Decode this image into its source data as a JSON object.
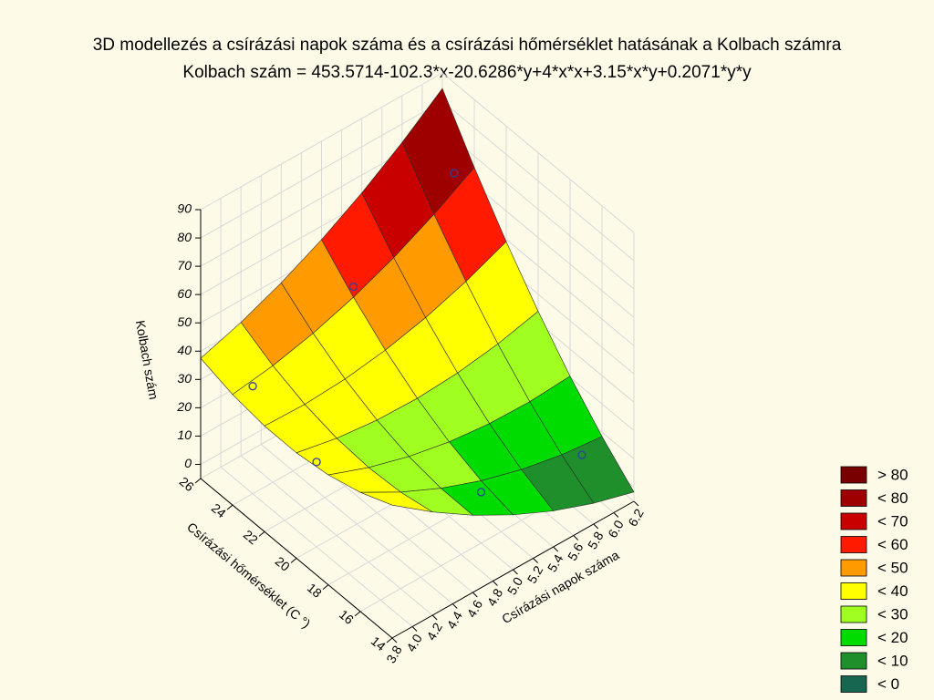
{
  "chart_data": {
    "type": "surface3d",
    "title": "3D modellezés a  csírázási napok száma és a csírázási hőmérséklet hatásának a Kolbach számra",
    "subtitle": "Kolbach szám = 453.5714-102.3*x-20.6286*y+4*x*x+3.15*x*y+0.2071*y*y",
    "xlabel": "Csírázási napok száma",
    "ylabel": "Csírázási hőmérséklet (C °)",
    "zlabel": "Kolbach szám",
    "xlim": [
      3.8,
      6.2
    ],
    "xticks": [
      3.8,
      {
        "value": 4,
        "label": "4.0"
      },
      4.2,
      4.4,
      4.6,
      4.8,
      {
        "value": 5,
        "label": "5.0"
      },
      5.2,
      5.4,
      5.6,
      5.8,
      {
        "value": 6,
        "label": "6.0"
      },
      6.2
    ],
    "ylim": [
      14,
      26
    ],
    "yticks": [
      14,
      16,
      18,
      20,
      22,
      24,
      26
    ],
    "zlim": [
      -5,
      90
    ],
    "zticks": [
      0,
      10,
      20,
      30,
      40,
      50,
      60,
      70,
      80,
      90
    ],
    "grid": true,
    "surface": {
      "x": [
        3.8,
        4.2,
        4.6,
        5.0,
        5.4,
        5.8,
        6.2
      ],
      "y": [
        14,
        16,
        18,
        20,
        22,
        24,
        26
      ],
      "z": [
        [
          41.96,
          37.07,
          33.84,
          32.26,
          32.34,
          34.08,
          37.47
        ],
        [
          31.48,
          29.11,
          28.4,
          29.34,
          31.94,
          36.2,
          42.11
        ],
        [
          22.28,
          22.43,
          24.24,
          27.7,
          32.82,
          39.6,
          48.03
        ],
        [
          14.36,
          17.03,
          21.36,
          27.34,
          34.98,
          44.28,
          55.23
        ],
        [
          7.72,
          12.91,
          19.76,
          28.26,
          38.42,
          50.24,
          63.71
        ],
        [
          2.36,
          10.07,
          19.44,
          30.46,
          43.14,
          57.48,
          73.47
        ],
        [
          -1.72,
          8.51,
          20.4,
          33.94,
          49.14,
          65.99,
          84.51
        ]
      ]
    },
    "points": {
      "color": "#3040a0",
      "x": [
        4,
        4,
        5,
        6,
        5,
        6
      ],
      "y": [
        24,
        20,
        24,
        24,
        16,
        16
      ],
      "z": [
        33,
        25,
        48,
        68,
        13,
        6
      ]
    },
    "legend": [
      {
        "label": "> 80",
        "value": 80,
        "color": "#780000"
      },
      {
        "label": "< 80",
        "value": 80,
        "color": "#9e0000"
      },
      {
        "label": "< 70",
        "value": 70,
        "color": "#c80000"
      },
      {
        "label": "< 60",
        "value": 60,
        "color": "#ff1a00"
      },
      {
        "label": "< 50",
        "value": 50,
        "color": "#ff9a00"
      },
      {
        "label": "< 40",
        "value": 40,
        "color": "#ffff00"
      },
      {
        "label": "< 30",
        "value": 30,
        "color": "#a0ff20"
      },
      {
        "label": "< 20",
        "value": 20,
        "color": "#00dc00"
      },
      {
        "label": "< 10",
        "value": 10,
        "color": "#1f8f2c"
      },
      {
        "label": "< 0",
        "value": 0,
        "color": "#17664f"
      }
    ]
  }
}
